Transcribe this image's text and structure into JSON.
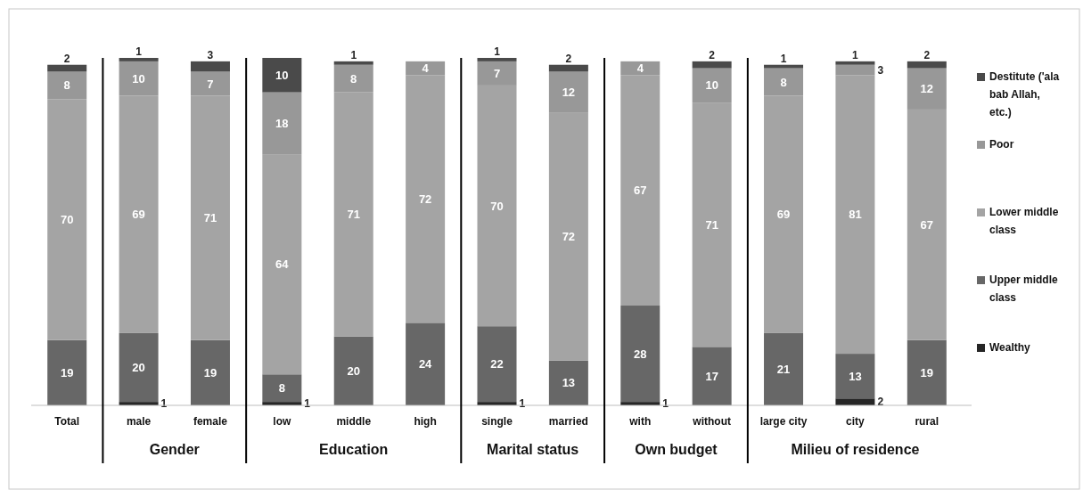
{
  "chart_data": {
    "type": "bar",
    "stacked": true,
    "tick_labels": "x",
    "legend": "right",
    "categories": [
      "Total",
      "male",
      "female",
      "low",
      "middle",
      "high",
      "single",
      "married",
      "with",
      "without",
      "large city",
      "city",
      "rural"
    ],
    "series": [
      {
        "name": "Wealthy",
        "color": "#262626",
        "values": [
          0,
          1,
          0,
          1,
          0,
          0,
          1,
          0,
          1,
          0,
          0,
          2,
          0
        ],
        "value_labels": [
          null,
          "1",
          null,
          "1",
          null,
          null,
          "1",
          null,
          "1",
          null,
          null,
          "2",
          null
        ]
      },
      {
        "name": "Upper middle class",
        "color": "#676767",
        "values": [
          19,
          20,
          19,
          8,
          20,
          24,
          22,
          13,
          28,
          17,
          21,
          13,
          19
        ],
        "value_labels": [
          "19",
          "20",
          "19",
          "8",
          "20",
          "24",
          "22",
          "13",
          "28",
          "17",
          "21",
          "13",
          "19"
        ]
      },
      {
        "name": "Lower middle class",
        "color": "#a4a4a4",
        "values": [
          70,
          69,
          71,
          64,
          71,
          72,
          70,
          72,
          67,
          71,
          69,
          81,
          67
        ],
        "value_labels": [
          "70",
          "69",
          "71",
          "64",
          "71",
          "72",
          "70",
          "72",
          "67",
          "71",
          "69",
          "81",
          "67"
        ]
      },
      {
        "name": "Poor",
        "color": "#989898",
        "values": [
          8,
          10,
          7,
          18,
          8,
          4,
          7,
          12,
          4,
          10,
          8,
          3,
          12
        ],
        "value_labels": [
          "8",
          "10",
          "7",
          "18",
          "8",
          "4",
          "7",
          "12",
          "4",
          "10",
          "8",
          "3",
          "12"
        ]
      },
      {
        "name": "Destitute ('ala bab Allah, etc.)",
        "color": "#4a4a4a",
        "values": [
          2,
          1,
          3,
          10,
          1,
          0,
          1,
          2,
          0,
          2,
          1,
          1,
          2
        ],
        "value_labels": [
          "2",
          "1",
          "3",
          "10",
          "1",
          null,
          "1",
          "2",
          null,
          "2",
          "1",
          "1",
          "2"
        ]
      }
    ],
    "annotations": [
      "Gender",
      "Education",
      "Marital status",
      "Own budget",
      "Milieu of residence"
    ]
  }
}
